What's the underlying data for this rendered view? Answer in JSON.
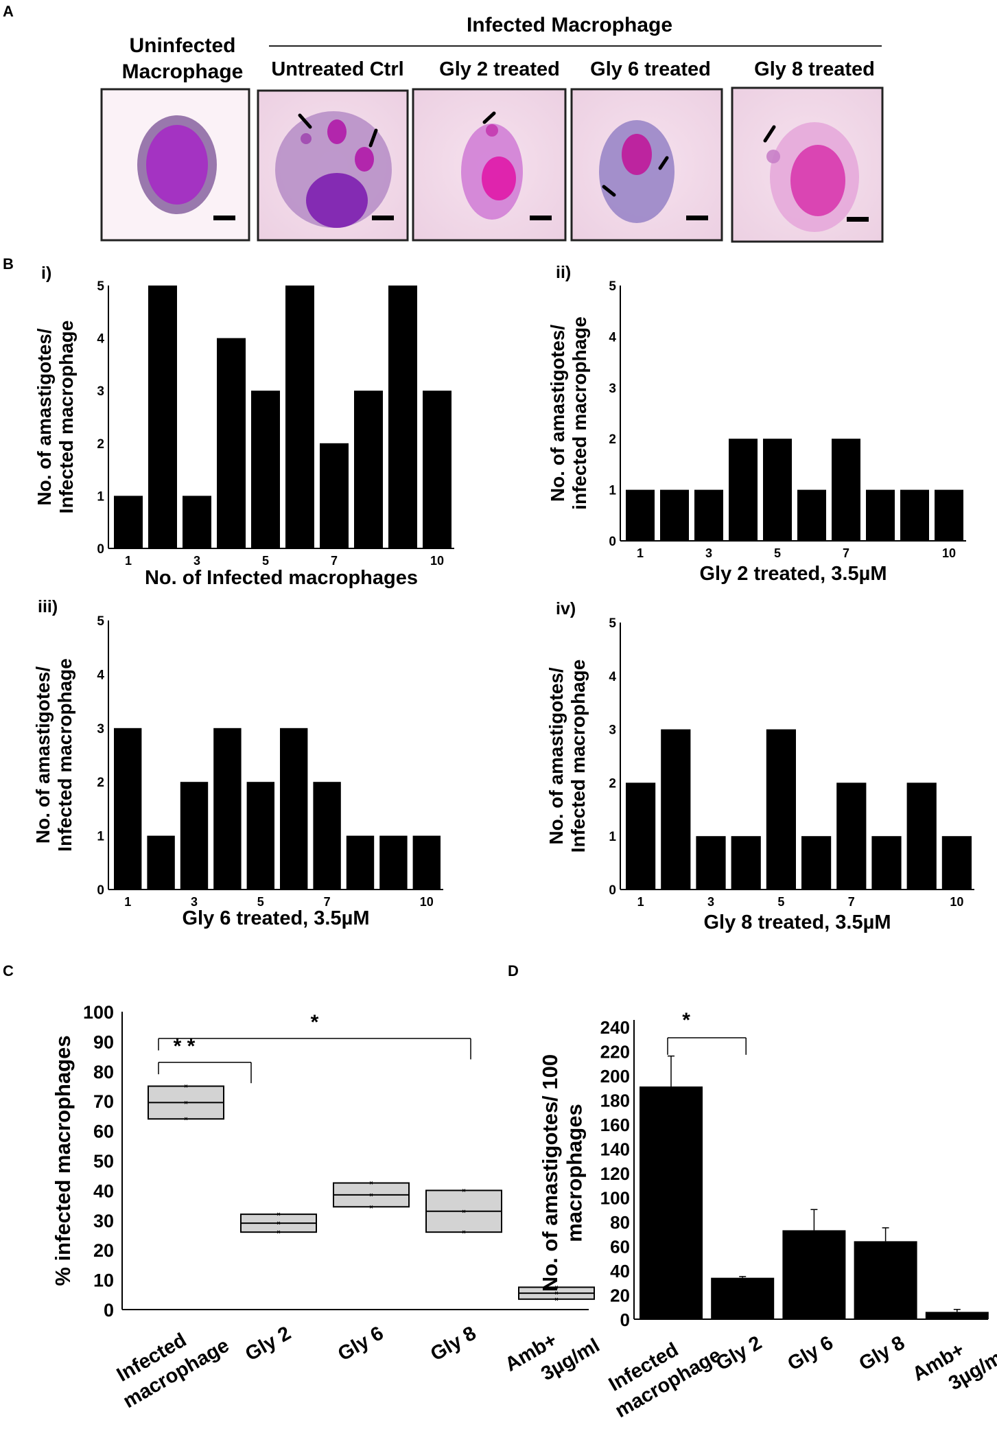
{
  "panel_labels": {
    "a": "A",
    "b": "B",
    "c": "C",
    "d": "D"
  },
  "panel_a": {
    "group_title": "Infected Macrophage",
    "uninfected_line1": "Uninfected",
    "uninfected_line2": "Macrophage",
    "image_labels": [
      "Untreated Ctrl",
      "Gly 2 treated",
      "Gly 6 treated",
      "Gly 8 treated"
    ]
  },
  "chart_data": [
    {
      "id": "B-i",
      "type": "bar",
      "roman": "i)",
      "categories": [
        "1",
        "2",
        "3",
        "4",
        "5",
        "6",
        "7",
        "8",
        "9",
        "10"
      ],
      "tick_labels": [
        "1",
        "3",
        "5",
        "7",
        "10"
      ],
      "tick_positions": [
        1,
        3,
        5,
        7,
        10
      ],
      "values": [
        1,
        5,
        1,
        4,
        3,
        5,
        2,
        3,
        5,
        3
      ],
      "xlabel": "No. of Infected macrophages",
      "ylabel": [
        "No. of amastigotes/",
        "Infected macrophage"
      ],
      "ylim": [
        0,
        5
      ],
      "yticks": [
        0,
        1,
        2,
        3,
        4,
        5
      ]
    },
    {
      "id": "B-ii",
      "type": "bar",
      "roman": "ii)",
      "categories": [
        "1",
        "2",
        "3",
        "4",
        "5",
        "6",
        "7",
        "8",
        "9",
        "10"
      ],
      "tick_labels": [
        "1",
        "3",
        "5",
        "7",
        "10"
      ],
      "tick_positions": [
        1,
        3,
        5,
        7,
        10
      ],
      "values": [
        1,
        1,
        1,
        2,
        2,
        1,
        2,
        1,
        1,
        1
      ],
      "xlabel": "Gly 2 treated, 3.5µM",
      "ylabel": [
        "No. of amastigotes/",
        "infected macrophage"
      ],
      "ylim": [
        0,
        5
      ],
      "yticks": [
        0,
        1,
        2,
        3,
        4,
        5
      ]
    },
    {
      "id": "B-iii",
      "type": "bar",
      "roman": "iii)",
      "categories": [
        "1",
        "2",
        "3",
        "4",
        "5",
        "6",
        "7",
        "8",
        "9",
        "10"
      ],
      "tick_labels": [
        "1",
        "3",
        "5",
        "7",
        "10"
      ],
      "tick_positions": [
        1,
        3,
        5,
        7,
        10
      ],
      "values": [
        3,
        1,
        2,
        3,
        2,
        3,
        2,
        1,
        1,
        1
      ],
      "xlabel": "Gly 6 treated, 3.5µM",
      "ylabel": [
        "No. of amastigotes/",
        "Infected  macrophage"
      ],
      "ylim": [
        0,
        5
      ],
      "yticks": [
        0,
        1,
        2,
        3,
        4,
        5
      ]
    },
    {
      "id": "B-iv",
      "type": "bar",
      "roman": "iv)",
      "categories": [
        "1",
        "2",
        "3",
        "4",
        "5",
        "6",
        "7",
        "8",
        "9",
        "10"
      ],
      "tick_labels": [
        "1",
        "3",
        "5",
        "7",
        "10"
      ],
      "tick_positions": [
        1,
        3,
        5,
        7,
        10
      ],
      "values": [
        2,
        3,
        1,
        1,
        3,
        1,
        2,
        1,
        2,
        1
      ],
      "xlabel": "Gly 8 treated, 3.5µM",
      "ylabel": [
        "No. of amastigotes/",
        "Infected macrophage"
      ],
      "ylim": [
        0,
        5
      ],
      "yticks": [
        0,
        1,
        2,
        3,
        4,
        5
      ]
    },
    {
      "id": "C",
      "type": "box",
      "categories": [
        [
          "Infected",
          "macrophage"
        ],
        [
          "Gly 2"
        ],
        [
          "Gly 6"
        ],
        [
          "Gly 8"
        ],
        [
          "Amb+",
          "3µg/ml"
        ]
      ],
      "boxes": [
        {
          "q1": 64,
          "median": 69.5,
          "q3": 75
        },
        {
          "q1": 26,
          "median": 29,
          "q3": 32
        },
        {
          "q1": 34.5,
          "median": 38.5,
          "q3": 42.5
        },
        {
          "q1": 26,
          "median": 33,
          "q3": 40
        },
        {
          "q1": 3.5,
          "median": 5.5,
          "q3": 7.5
        }
      ],
      "ylabel": "% infected macrophages",
      "ylim": [
        0,
        100
      ],
      "yticks": [
        0,
        10,
        20,
        30,
        40,
        50,
        60,
        70,
        80,
        90,
        100
      ],
      "significance": [
        {
          "from": 0,
          "to": 1,
          "label": "* *",
          "level": 83,
          "top": 88
        },
        {
          "from": 0,
          "to": 3,
          "label": "*",
          "level": 91,
          "top": 98
        }
      ]
    },
    {
      "id": "D",
      "type": "bar",
      "categories": [
        [
          "Infected",
          "macrophage"
        ],
        [
          "Gly 2"
        ],
        [
          "Gly 6"
        ],
        [
          "Gly 8"
        ],
        [
          "Amb+",
          "3µg/ml"
        ]
      ],
      "values": [
        191,
        34,
        73,
        64,
        6
      ],
      "errors": [
        25,
        1,
        17,
        11,
        2
      ],
      "ylabel": [
        "No. of amastigotes/ 100",
        "macrophages"
      ],
      "ylim": [
        0,
        240
      ],
      "yticks": [
        0,
        20,
        40,
        60,
        80,
        100,
        120,
        140,
        160,
        180,
        200,
        220,
        240
      ],
      "significance": [
        {
          "from": 0,
          "to": 1,
          "label": "*",
          "level": 231,
          "top": 240
        }
      ]
    }
  ]
}
